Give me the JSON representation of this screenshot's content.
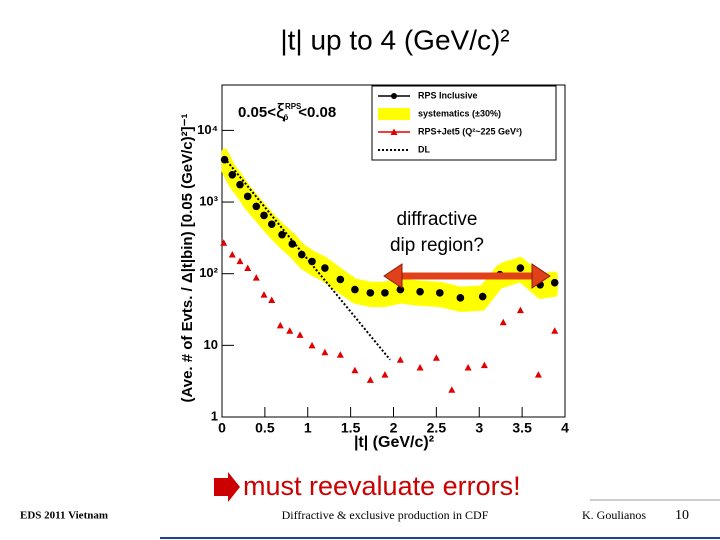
{
  "slide": {
    "title": "|t| up to 4 (GeV/c)²",
    "note": "must reevaluate errors!",
    "footer_left": "EDS 2011 Vietnam",
    "footer_center": "Diffractive & exclusive production in CDF",
    "footer_right": "K. Goulianos",
    "page": "10"
  },
  "chart_data": {
    "type": "scatter",
    "log_y": true,
    "x_label": "|t| (GeV/c)²",
    "y_label": "(Ave. # of Evts. / Δ|t|bin) [0.05 (GeV/c)²]⁻¹",
    "selection": {
      "left": "0.05<",
      "symbol": "ξ",
      "sup": "RPS",
      "sub": "p̄",
      "right": "<0.08"
    },
    "annotation": [
      "diffractive",
      "dip region?"
    ],
    "xlim": [
      0,
      4
    ],
    "xticks": [
      0,
      0.5,
      1,
      1.5,
      2,
      2.5,
      3,
      3.5,
      4
    ],
    "ylim": [
      1,
      43000
    ],
    "yticks": [
      1,
      10,
      {
        "value": 100,
        "label": "10²"
      },
      {
        "value": 1000,
        "label": "10³"
      },
      {
        "value": 10000,
        "label": "10⁴"
      }
    ],
    "band": {
      "name": "systematics (±30%)",
      "color": "#ffff00",
      "relative": 30
    },
    "series": [
      {
        "name": "RPS Inclusive",
        "color": "#000000",
        "marker": "circle",
        "x": [
          0.03,
          0.12,
          0.21,
          0.3,
          0.4,
          0.49,
          0.58,
          0.7,
          0.82,
          0.93,
          1.05,
          1.2,
          1.38,
          1.55,
          1.73,
          1.9,
          2.08,
          2.31,
          2.54,
          2.78,
          3.04,
          3.24,
          3.48,
          3.71,
          3.88
        ],
        "values": [
          3900,
          2400,
          1750,
          1200,
          870,
          650,
          490,
          350,
          260,
          185,
          148,
          120,
          83,
          60,
          54,
          54,
          60,
          56,
          54,
          46,
          48,
          97,
          120,
          70,
          75
        ]
      },
      {
        "name": "RPS+Jet5 (Q²~225 GeV²)",
        "color": "#e00000",
        "marker": "triangle",
        "x": [
          0.02,
          0.12,
          0.21,
          0.3,
          0.4,
          0.49,
          0.58,
          0.68,
          0.79,
          0.91,
          1.05,
          1.2,
          1.38,
          1.55,
          1.73,
          1.9,
          2.08,
          2.31,
          2.5,
          2.68,
          2.87,
          3.06,
          3.28,
          3.48,
          3.69,
          3.88
        ],
        "values": [
          270,
          185,
          150,
          120,
          88,
          51,
          43,
          19,
          16,
          14,
          10,
          8,
          7.4,
          4.5,
          3.3,
          3.9,
          6.3,
          4.9,
          6.7,
          2.4,
          4.9,
          5.3,
          21,
          31,
          3.9,
          16
        ]
      },
      {
        "name": "DL",
        "color": "#000000",
        "marker": "dotted",
        "x": [
          0.03,
          1.96
        ],
        "values": [
          4100,
          6.3
        ]
      }
    ]
  }
}
